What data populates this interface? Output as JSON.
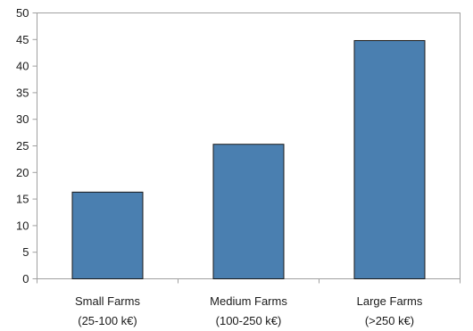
{
  "chart_data": {
    "type": "bar",
    "title": "",
    "xlabel": "",
    "ylabel": "",
    "categories": [
      [
        "Small Farms",
        "(25-100 k€)"
      ],
      [
        "Medium Farms",
        "(100-250 k€)"
      ],
      [
        "Large Farms",
        "(>250 k€)"
      ]
    ],
    "values": [
      16.3,
      25.3,
      44.8
    ],
    "ylim": [
      0,
      50
    ],
    "yticks": [
      "0",
      "5",
      "10",
      "15",
      "20",
      "25",
      "30",
      "35",
      "40",
      "45",
      "50"
    ],
    "bar_color": "#4a7fb0",
    "grid": false,
    "legend": "none"
  }
}
